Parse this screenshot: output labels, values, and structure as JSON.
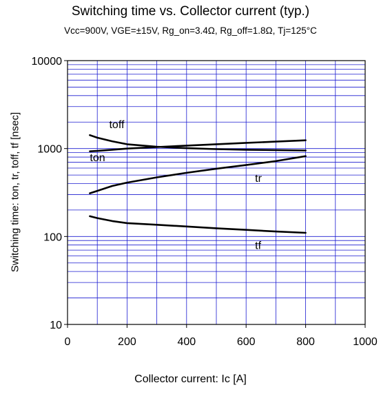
{
  "chart_data": {
    "type": "line",
    "title": "Switching time  vs.  Collector current  (typ.)",
    "subtitle": "Vcc=900V, VGE=±15V, Rg_on=3.4Ω, Rg_off=1.8Ω, Tj=125°C",
    "xlabel": "Collector current: Ic [A]",
    "ylabel": "Switching time: ton, tr, toff, tf [nsec]",
    "xlim": [
      0,
      1000
    ],
    "ylim": [
      10,
      10000
    ],
    "yscale": "log",
    "grid": true,
    "grid_color": "#1b1bd0",
    "line_color": "#000000",
    "x_ticks": [
      "0",
      "200",
      "400",
      "600",
      "800",
      "1000"
    ],
    "y_ticks": [
      "10",
      "100",
      "1000",
      "10000"
    ],
    "series": [
      {
        "name": "toff",
        "x": [
          75,
          100,
          150,
          200,
          300,
          400,
          500,
          600,
          700,
          800
        ],
        "y": [
          1420,
          1330,
          1210,
          1120,
          1050,
          1010,
          985,
          970,
          960,
          950
        ]
      },
      {
        "name": "ton",
        "x": [
          75,
          100,
          150,
          200,
          300,
          400,
          500,
          600,
          700,
          800
        ],
        "y": [
          930,
          940,
          970,
          1000,
          1040,
          1080,
          1120,
          1160,
          1200,
          1240
        ]
      },
      {
        "name": "tr",
        "x": [
          75,
          100,
          150,
          200,
          300,
          400,
          500,
          600,
          700,
          800
        ],
        "y": [
          310,
          330,
          375,
          410,
          470,
          530,
          590,
          650,
          720,
          820
        ]
      },
      {
        "name": "tf",
        "x": [
          75,
          100,
          150,
          200,
          300,
          400,
          500,
          600,
          700,
          800
        ],
        "y": [
          170,
          162,
          150,
          142,
          136,
          130,
          124,
          119,
          114,
          110
        ]
      }
    ],
    "annotations": [
      {
        "text": "toff",
        "x": 140,
        "y": 1700
      },
      {
        "text": "ton",
        "x": 75,
        "y": 720
      },
      {
        "text": "tr",
        "x": 630,
        "y": 420
      },
      {
        "text": "tf",
        "x": 630,
        "y": 72
      }
    ]
  }
}
